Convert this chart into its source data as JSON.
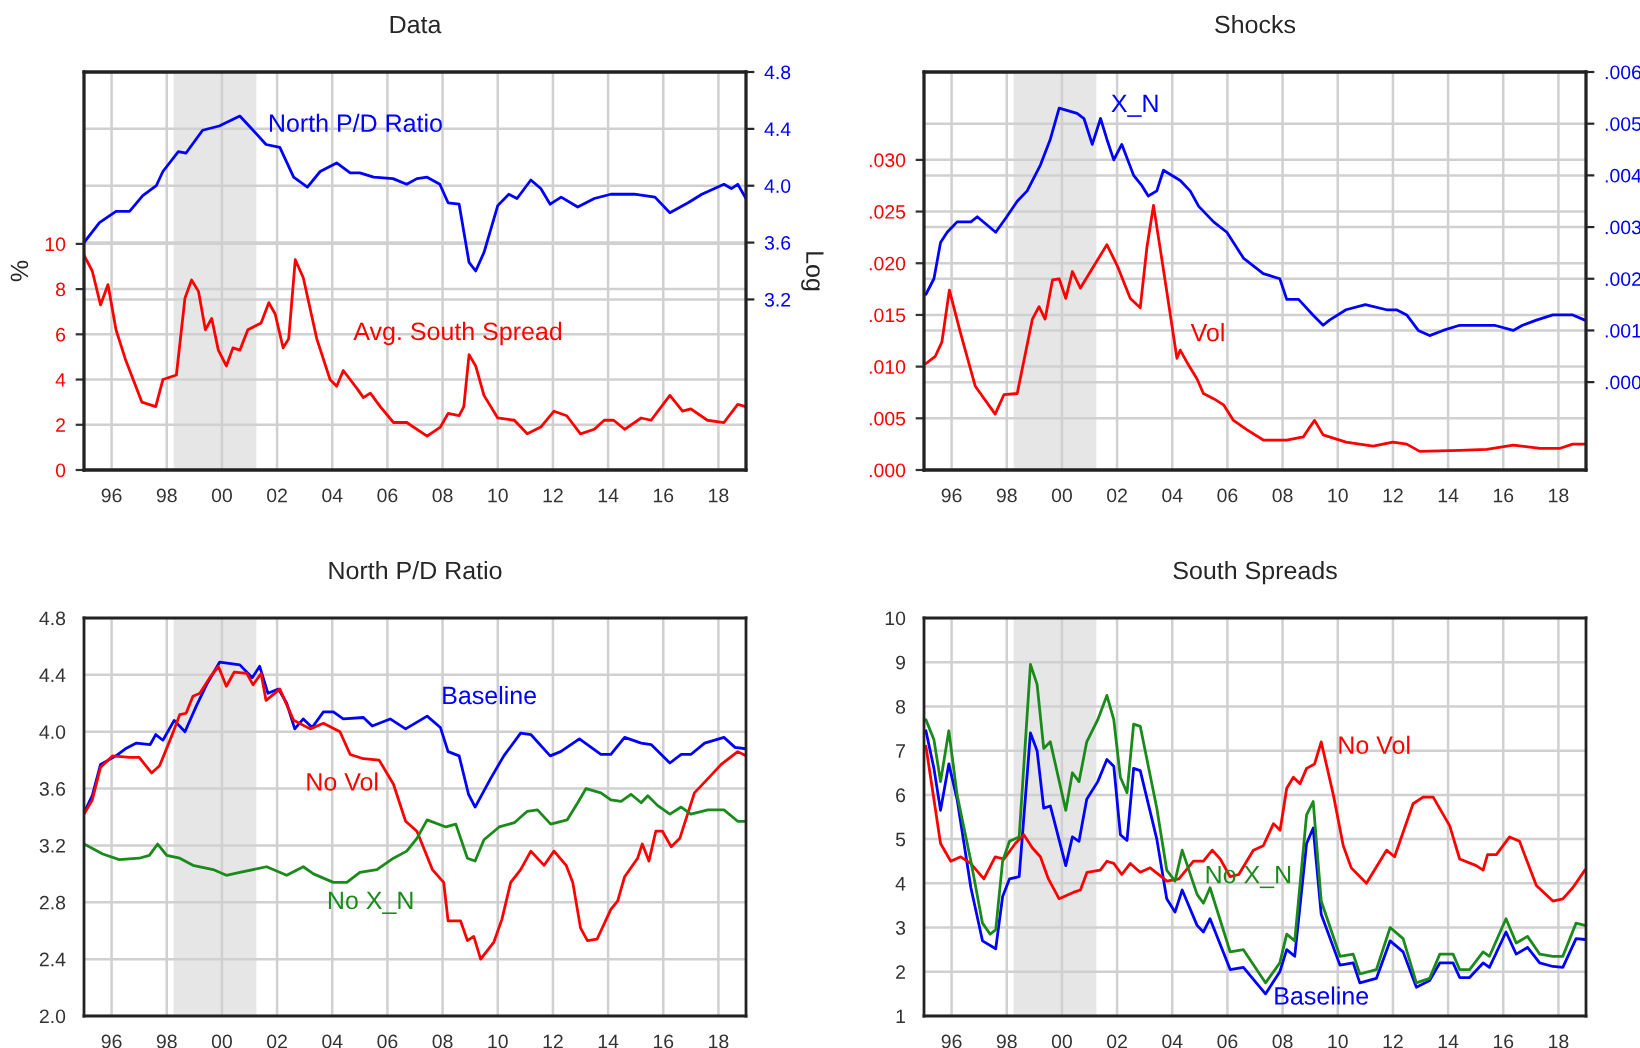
{
  "chart_data": [
    {
      "type": "line",
      "title": "Data",
      "ylabel": "%",
      "y2label": "Log",
      "xlim": [
        1995,
        2019
      ],
      "ylim": [
        0,
        17.6
      ],
      "yticks": [
        0,
        2,
        4,
        6,
        8,
        10
      ],
      "y2lim": [
        2.0,
        4.8
      ],
      "y2ticks": [
        3.2,
        3.6,
        {
          "value": 4.0,
          "label": "4.0"
        },
        4.4,
        4.8
      ],
      "xticks": [
        {
          "value": 1996,
          "label": "96"
        },
        {
          "value": 1998,
          "label": "98"
        },
        {
          "value": 2000,
          "label": "00"
        },
        {
          "value": 2002,
          "label": "02"
        },
        {
          "value": 2004,
          "label": "04"
        },
        {
          "value": 2006,
          "label": "06"
        },
        {
          "value": 2008,
          "label": "08"
        },
        {
          "value": 2010,
          "label": "10"
        },
        {
          "value": 2012,
          "label": "12"
        },
        {
          "value": 2014,
          "label": "14"
        },
        {
          "value": 2016,
          "label": "16"
        },
        {
          "value": 2018,
          "label": "18"
        }
      ],
      "grid": true,
      "bands": [
        {
          "axis": "x",
          "from": 1998.25,
          "to": 2001.25,
          "color": "#e6e6e6"
        }
      ],
      "series": [
        {
          "name": "North P/D Ratio",
          "color": "#0000ff",
          "axis": "y2",
          "x": [
            1995.0,
            1995.56,
            1996.16,
            1996.65,
            1997.13,
            1997.62,
            1997.86,
            1998.42,
            1998.7,
            1999.3,
            1999.9,
            2000.65,
            2001.13,
            2001.6,
            2002.1,
            2002.6,
            2003.1,
            2003.56,
            2004.16,
            2004.65,
            2005.0,
            2005.5,
            2006.2,
            2006.7,
            2007.07,
            2007.44,
            2007.9,
            2008.2,
            2008.6,
            2008.96,
            2009.2,
            2009.5,
            2010.0,
            2010.4,
            2010.7,
            2011.2,
            2011.56,
            2011.9,
            2012.3,
            2012.9,
            2013.5,
            2014.1,
            2014.95,
            2015.7,
            2016.24,
            2016.9,
            2017.4,
            2018.2,
            2018.47,
            2018.7,
            2019.0
          ],
          "values": [
            3.6,
            3.74,
            3.82,
            3.82,
            3.93,
            4.0,
            4.1,
            4.24,
            4.23,
            4.39,
            4.42,
            4.49,
            4.39,
            4.29,
            4.27,
            4.06,
            3.99,
            4.1,
            4.16,
            4.09,
            4.09,
            4.06,
            4.05,
            4.01,
            4.05,
            4.06,
            4.01,
            3.88,
            3.87,
            3.46,
            3.4,
            3.53,
            3.86,
            3.94,
            3.91,
            4.04,
            3.98,
            3.87,
            3.92,
            3.85,
            3.91,
            3.94,
            3.94,
            3.92,
            3.81,
            3.88,
            3.94,
            4.01,
            3.98,
            4.01,
            3.91
          ]
        },
        {
          "name": "Avg. South Spread",
          "color": "#ff0000",
          "x": [
            1995.0,
            1995.3,
            1995.6,
            1995.87,
            1996.16,
            1996.5,
            1997.1,
            1997.6,
            1997.86,
            1998.35,
            1998.66,
            1998.9,
            1999.15,
            1999.4,
            1999.63,
            1999.87,
            2000.16,
            2000.4,
            2000.65,
            2000.94,
            2001.42,
            2001.7,
            2001.93,
            2002.22,
            2002.42,
            2002.66,
            2002.95,
            2003.44,
            2003.92,
            2004.16,
            2004.4,
            2004.9,
            2005.13,
            2005.38,
            2005.74,
            2006.22,
            2006.7,
            2007.44,
            2007.92,
            2008.2,
            2008.6,
            2008.77,
            2008.96,
            2009.2,
            2009.5,
            2010.0,
            2010.6,
            2011.07,
            2011.56,
            2012.04,
            2012.5,
            2013.0,
            2013.5,
            2013.86,
            2014.2,
            2014.6,
            2015.2,
            2015.56,
            2016.24,
            2016.7,
            2017.0,
            2017.6,
            2018.2,
            2018.7,
            2019.0
          ],
          "values": [
            9.5,
            8.8,
            7.3,
            8.2,
            6.2,
            4.9,
            3.0,
            2.8,
            4.0,
            4.2,
            7.6,
            8.4,
            7.9,
            6.2,
            6.7,
            5.3,
            4.6,
            5.4,
            5.3,
            6.2,
            6.5,
            7.4,
            6.9,
            5.4,
            5.8,
            9.3,
            8.5,
            5.8,
            4.0,
            3.7,
            4.4,
            3.6,
            3.2,
            3.4,
            2.8,
            2.1,
            2.1,
            1.5,
            1.9,
            2.5,
            2.4,
            2.8,
            5.1,
            4.6,
            3.3,
            2.3,
            2.2,
            1.6,
            1.9,
            2.6,
            2.4,
            1.6,
            1.8,
            2.2,
            2.2,
            1.8,
            2.3,
            2.2,
            3.3,
            2.6,
            2.7,
            2.2,
            2.1,
            2.9,
            2.8
          ]
        }
      ]
    },
    {
      "type": "line",
      "title": "Shocks",
      "xlim": [
        1995,
        2019
      ],
      "ylim": [
        0,
        0.0385
      ],
      "yticks": [
        {
          "value": 0,
          "label": ".000"
        },
        {
          "value": 0.005,
          "label": ".005"
        },
        {
          "value": 0.01,
          "label": ".010"
        },
        {
          "value": 0.015,
          "label": ".015"
        },
        {
          "value": 0.02,
          "label": ".020"
        },
        {
          "value": 0.025,
          "label": ".025"
        },
        {
          "value": 0.03,
          "label": ".030"
        }
      ],
      "y2lim": [
        -0.0017,
        0.006
      ],
      "y2ticks": [
        {
          "value": 0,
          "label": ".000"
        },
        {
          "value": 0.001,
          "label": ".001"
        },
        {
          "value": 0.002,
          "label": ".002"
        },
        {
          "value": 0.003,
          "label": ".003"
        },
        {
          "value": 0.004,
          "label": ".004"
        },
        {
          "value": 0.005,
          "label": ".005"
        },
        {
          "value": 0.006,
          "label": ".006"
        }
      ],
      "xticks": [
        {
          "value": 1996,
          "label": "96"
        },
        {
          "value": 1998,
          "label": "98"
        },
        {
          "value": 2000,
          "label": "00"
        },
        {
          "value": 2002,
          "label": "02"
        },
        {
          "value": 2004,
          "label": "04"
        },
        {
          "value": 2006,
          "label": "06"
        },
        {
          "value": 2008,
          "label": "08"
        },
        {
          "value": 2010,
          "label": "10"
        },
        {
          "value": 2012,
          "label": "12"
        },
        {
          "value": 2014,
          "label": "14"
        },
        {
          "value": 2016,
          "label": "16"
        },
        {
          "value": 2018,
          "label": "18"
        }
      ],
      "grid": true,
      "bands": [
        {
          "axis": "x",
          "from": 1998.25,
          "to": 2001.25,
          "color": "#e6e6e6"
        }
      ],
      "series": [
        {
          "name": "X_N",
          "color": "#0000ff",
          "axis": "y2",
          "x": [
            1995.07,
            1995.36,
            1995.6,
            1995.84,
            1996.2,
            1996.7,
            1996.93,
            1997.6,
            1998.0,
            1998.38,
            1998.74,
            1999.22,
            1999.58,
            1999.9,
            2000.55,
            2000.8,
            2001.1,
            2001.4,
            2001.63,
            2001.88,
            2002.17,
            2002.6,
            2002.9,
            2003.13,
            2003.44,
            2003.68,
            2004.29,
            2004.65,
            2004.96,
            2005.5,
            2005.98,
            2006.58,
            2007.3,
            2007.9,
            2008.15,
            2008.58,
            2009.1,
            2009.47,
            2009.7,
            2010.3,
            2011.0,
            2011.77,
            2012.13,
            2012.5,
            2012.92,
            2013.33,
            2013.82,
            2014.42,
            2015.15,
            2015.4,
            2015.68,
            2016.36,
            2016.7,
            2017.2,
            2017.8,
            2018.52,
            2018.96
          ],
          "values": [
            0.0017,
            0.002,
            0.0027,
            0.0029,
            0.0031,
            0.0031,
            0.0032,
            0.0029,
            0.0032,
            0.0035,
            0.0037,
            0.0042,
            0.0047,
            0.0053,
            0.0052,
            0.0051,
            0.0046,
            0.0051,
            0.0047,
            0.0043,
            0.0046,
            0.004,
            0.0038,
            0.0036,
            0.0037,
            0.0041,
            0.0039,
            0.0037,
            0.0034,
            0.0031,
            0.0029,
            0.0024,
            0.0021,
            0.002,
            0.0016,
            0.0016,
            0.0013,
            0.0011,
            0.0012,
            0.0014,
            0.0015,
            0.0014,
            0.0014,
            0.0013,
            0.001,
            0.0009,
            0.001,
            0.0011,
            0.0011,
            0.0011,
            0.0011,
            0.001,
            0.0011,
            0.0012,
            0.0013,
            0.0013,
            0.0012
          ]
        },
        {
          "name": "Vol",
          "color": "#ff0000",
          "x": [
            1995.07,
            1995.41,
            1995.65,
            1995.92,
            1996.33,
            1996.86,
            1997.58,
            1997.9,
            1998.38,
            1998.93,
            1999.17,
            1999.39,
            1999.66,
            1999.9,
            2000.14,
            2000.38,
            2000.67,
            2001.63,
            2002.0,
            2002.48,
            2002.84,
            2003.08,
            2003.32,
            2003.68,
            2004.17,
            2004.29,
            2004.58,
            2004.9,
            2005.13,
            2005.5,
            2005.86,
            2006.22,
            2006.7,
            2007.3,
            2008.15,
            2008.75,
            2009.0,
            2009.16,
            2009.47,
            2010.3,
            2011.28,
            2012.0,
            2012.5,
            2012.97,
            2014.42,
            2015.4,
            2016.36,
            2017.33,
            2018.06,
            2018.52,
            2018.96
          ],
          "values": [
            0.0103,
            0.011,
            0.0124,
            0.0174,
            0.0132,
            0.0081,
            0.0054,
            0.0073,
            0.0074,
            0.0146,
            0.0158,
            0.0146,
            0.0184,
            0.0185,
            0.0166,
            0.0192,
            0.0176,
            0.0218,
            0.0198,
            0.0166,
            0.0157,
            0.0215,
            0.0256,
            0.0194,
            0.0108,
            0.0116,
            0.0102,
            0.0088,
            0.0074,
            0.0069,
            0.0063,
            0.0048,
            0.0039,
            0.0029,
            0.0029,
            0.0032,
            0.0042,
            0.0048,
            0.0034,
            0.0027,
            0.0023,
            0.0027,
            0.0025,
            0.0018,
            0.0019,
            0.002,
            0.0024,
            0.0021,
            0.0021,
            0.0025,
            0.0025
          ]
        }
      ]
    },
    {
      "type": "line",
      "title": "North P/D Ratio",
      "xlim": [
        1995,
        2019
      ],
      "ylim": [
        2.0,
        4.8
      ],
      "yticks": [
        {
          "value": 2.0,
          "label": "2.0"
        },
        2.4,
        2.8,
        3.2,
        3.6,
        {
          "value": 4.0,
          "label": "4.0"
        },
        4.4,
        4.8
      ],
      "xticks": [
        {
          "value": 1996,
          "label": "96"
        },
        {
          "value": 1998,
          "label": "98"
        },
        {
          "value": 2000,
          "label": "00"
        },
        {
          "value": 2002,
          "label": "02"
        },
        {
          "value": 2004,
          "label": "04"
        },
        {
          "value": 2006,
          "label": "06"
        },
        {
          "value": 2008,
          "label": "08"
        },
        {
          "value": 2010,
          "label": "10"
        },
        {
          "value": 2012,
          "label": "12"
        },
        {
          "value": 2014,
          "label": "14"
        },
        {
          "value": 2016,
          "label": "16"
        },
        {
          "value": 2018,
          "label": "18"
        }
      ],
      "grid": true,
      "bands": [
        {
          "axis": "x",
          "from": 1998.25,
          "to": 2001.25,
          "color": "#e6e6e6"
        }
      ],
      "series": [
        {
          "name": "Baseline",
          "color": "#0000ff",
          "x": [
            1995.0,
            1995.3,
            1995.6,
            1996.16,
            1996.5,
            1996.9,
            1997.4,
            1997.6,
            1997.86,
            1998.27,
            1998.66,
            1999.07,
            1999.44,
            1999.92,
            2000.65,
            2001.1,
            2001.37,
            2001.67,
            2002.05,
            2002.35,
            2002.64,
            2002.95,
            2003.27,
            2003.68,
            2004.04,
            2004.4,
            2005.13,
            2005.45,
            2006.1,
            2006.66,
            2007.44,
            2007.92,
            2008.2,
            2008.6,
            2008.94,
            2009.18,
            2009.74,
            2010.22,
            2010.83,
            2011.2,
            2011.9,
            2012.28,
            2012.96,
            2013.74,
            2014.1,
            2014.6,
            2015.2,
            2015.56,
            2016.24,
            2016.65,
            2017.0,
            2017.5,
            2018.2,
            2018.6,
            2019.0
          ],
          "values": [
            3.43,
            3.55,
            3.77,
            3.83,
            3.88,
            3.92,
            3.91,
            3.98,
            3.94,
            4.08,
            4.0,
            4.18,
            4.33,
            4.49,
            4.47,
            4.38,
            4.46,
            4.27,
            4.3,
            4.2,
            4.02,
            4.09,
            4.03,
            4.14,
            4.14,
            4.09,
            4.1,
            4.04,
            4.09,
            4.02,
            4.11,
            4.03,
            3.86,
            3.83,
            3.56,
            3.47,
            3.67,
            3.83,
            3.99,
            3.98,
            3.83,
            3.86,
            3.95,
            3.84,
            3.84,
            3.96,
            3.92,
            3.91,
            3.78,
            3.84,
            3.84,
            3.92,
            3.96,
            3.89,
            3.88
          ]
        },
        {
          "name": "No Vol",
          "color": "#ff0000",
          "x": [
            1995.0,
            1995.3,
            1995.6,
            1996.04,
            1996.65,
            1997.0,
            1997.45,
            1997.74,
            1998.22,
            1998.47,
            1998.7,
            1998.95,
            1999.2,
            1999.56,
            1999.87,
            2000.16,
            2000.45,
            2000.9,
            2001.13,
            2001.42,
            2001.6,
            2002.1,
            2002.6,
            2003.2,
            2003.68,
            2004.28,
            2004.65,
            2005.13,
            2005.7,
            2006.22,
            2006.66,
            2007.07,
            2007.63,
            2008.04,
            2008.2,
            2008.65,
            2008.9,
            2009.13,
            2009.38,
            2009.86,
            2010.15,
            2010.47,
            2010.83,
            2011.2,
            2011.68,
            2012.04,
            2012.48,
            2012.72,
            2013.0,
            2013.25,
            2013.6,
            2014.1,
            2014.35,
            2014.6,
            2015.07,
            2015.24,
            2015.48,
            2015.73,
            2015.97,
            2016.29,
            2016.6,
            2017.13,
            2017.62,
            2018.1,
            2018.7,
            2019.0
          ],
          "values": [
            3.42,
            3.52,
            3.75,
            3.83,
            3.82,
            3.82,
            3.71,
            3.76,
            3.99,
            4.12,
            4.13,
            4.25,
            4.27,
            4.38,
            4.46,
            4.32,
            4.42,
            4.41,
            4.33,
            4.41,
            4.22,
            4.3,
            4.08,
            4.02,
            4.06,
            4.0,
            3.84,
            3.81,
            3.8,
            3.63,
            3.37,
            3.3,
            3.03,
            2.94,
            2.67,
            2.67,
            2.53,
            2.56,
            2.4,
            2.52,
            2.68,
            2.94,
            3.03,
            3.16,
            3.06,
            3.16,
            3.06,
            2.94,
            2.62,
            2.53,
            2.54,
            2.75,
            2.81,
            2.98,
            3.11,
            3.21,
            3.09,
            3.3,
            3.3,
            3.19,
            3.25,
            3.57,
            3.67,
            3.77,
            3.86,
            3.83
          ]
        },
        {
          "name": "No X_N",
          "color": "#1a8a1a",
          "x": [
            1995.0,
            1995.68,
            1996.28,
            1997.0,
            1997.37,
            1997.67,
            1998.0,
            1998.47,
            1998.95,
            1999.68,
            2000.16,
            2000.65,
            2001.62,
            2002.35,
            2002.95,
            2003.32,
            2004.04,
            2004.53,
            2005.0,
            2005.62,
            2006.22,
            2006.7,
            2007.07,
            2007.44,
            2008.12,
            2008.48,
            2008.9,
            2009.18,
            2009.5,
            2010.05,
            2010.6,
            2011.07,
            2011.44,
            2011.92,
            2012.52,
            2012.9,
            2013.2,
            2013.74,
            2014.1,
            2014.47,
            2014.83,
            2015.2,
            2015.44,
            2015.8,
            2016.24,
            2016.65,
            2017.0,
            2017.62,
            2018.2,
            2018.7,
            2019.0
          ],
          "values": [
            3.21,
            3.14,
            3.1,
            3.11,
            3.13,
            3.21,
            3.13,
            3.11,
            3.06,
            3.03,
            2.99,
            3.01,
            3.05,
            2.99,
            3.05,
            3.0,
            2.94,
            2.94,
            3.01,
            3.03,
            3.11,
            3.16,
            3.25,
            3.38,
            3.33,
            3.35,
            3.11,
            3.09,
            3.24,
            3.33,
            3.36,
            3.44,
            3.45,
            3.35,
            3.38,
            3.5,
            3.6,
            3.57,
            3.52,
            3.51,
            3.56,
            3.5,
            3.55,
            3.48,
            3.42,
            3.47,
            3.42,
            3.45,
            3.45,
            3.37,
            3.37
          ]
        }
      ]
    },
    {
      "type": "line",
      "title": "South Spreads",
      "xlim": [
        1995,
        2019
      ],
      "ylim": [
        1,
        10
      ],
      "yticks": [
        1,
        2,
        3,
        4,
        5,
        6,
        7,
        8,
        9,
        10
      ],
      "xticks": [
        {
          "value": 1996,
          "label": "96"
        },
        {
          "value": 1998,
          "label": "98"
        },
        {
          "value": 2000,
          "label": "00"
        },
        {
          "value": 2002,
          "label": "02"
        },
        {
          "value": 2004,
          "label": "04"
        },
        {
          "value": 2006,
          "label": "06"
        },
        {
          "value": 2008,
          "label": "08"
        },
        {
          "value": 2010,
          "label": "10"
        },
        {
          "value": 2012,
          "label": "12"
        },
        {
          "value": 2014,
          "label": "14"
        },
        {
          "value": 2016,
          "label": "16"
        },
        {
          "value": 2018,
          "label": "18"
        }
      ],
      "grid": true,
      "bands": [
        {
          "axis": "x",
          "from": 1998.25,
          "to": 2001.25,
          "color": "#e6e6e6"
        }
      ],
      "series": [
        {
          "name": "Baseline",
          "color": "#0000ff",
          "x": [
            1995.07,
            1995.36,
            1995.6,
            1995.9,
            1996.2,
            1996.7,
            1997.12,
            1997.6,
            1997.85,
            1998.1,
            1998.45,
            1998.86,
            1999.1,
            1999.34,
            1999.58,
            2000.14,
            2000.38,
            2000.62,
            2000.9,
            2001.3,
            2001.63,
            2001.88,
            2002.12,
            2002.36,
            2002.6,
            2002.84,
            2003.44,
            2003.8,
            2004.1,
            2004.36,
            2004.9,
            2005.13,
            2005.37,
            2006.1,
            2006.58,
            2007.38,
            2007.9,
            2008.15,
            2008.44,
            2008.87,
            2009.11,
            2009.4,
            2010.08,
            2010.56,
            2010.8,
            2011.4,
            2011.9,
            2012.37,
            2012.85,
            2013.33,
            2013.7,
            2014.18,
            2014.42,
            2014.78,
            2015.27,
            2015.5,
            2016.1,
            2016.47,
            2016.88,
            2017.32,
            2017.8,
            2018.16,
            2018.64,
            2018.96
          ],
          "values": [
            7.45,
            6.6,
            5.65,
            6.7,
            5.9,
            3.9,
            2.7,
            2.52,
            3.7,
            4.1,
            4.15,
            7.4,
            7.0,
            5.7,
            5.75,
            4.4,
            5.05,
            4.95,
            5.9,
            6.3,
            6.8,
            6.65,
            5.1,
            4.97,
            6.6,
            6.55,
            5.0,
            3.65,
            3.35,
            3.85,
            3.05,
            2.9,
            3.2,
            2.05,
            2.1,
            1.5,
            2.0,
            2.5,
            2.35,
            4.9,
            5.25,
            3.3,
            2.15,
            2.2,
            1.75,
            1.85,
            2.7,
            2.45,
            1.65,
            1.8,
            2.2,
            2.2,
            1.87,
            1.87,
            2.2,
            2.1,
            2.9,
            2.4,
            2.55,
            2.2,
            2.12,
            2.1,
            2.75,
            2.73
          ]
        },
        {
          "name": "No Vol",
          "color": "#ff0000",
          "x": [
            1995.07,
            1995.6,
            1995.97,
            1996.33,
            1996.69,
            1997.17,
            1997.58,
            1997.9,
            1998.31,
            1998.62,
            1998.93,
            1999.22,
            1999.51,
            1999.9,
            2000.43,
            2000.67,
            2000.91,
            2001.39,
            2001.63,
            2001.88,
            2002.17,
            2002.48,
            2002.84,
            2003.2,
            2003.81,
            2004.24,
            2004.77,
            2005.13,
            2005.45,
            2005.74,
            2006.1,
            2006.41,
            2006.94,
            2007.3,
            2007.67,
            2007.91,
            2008.15,
            2008.39,
            2008.63,
            2008.87,
            2009.16,
            2009.4,
            2009.84,
            2010.2,
            2010.49,
            2011.04,
            2011.77,
            2012.06,
            2012.73,
            2013.09,
            2013.46,
            2014.06,
            2014.42,
            2015.02,
            2015.27,
            2015.43,
            2015.75,
            2016.23,
            2016.59,
            2017.2,
            2017.8,
            2018.16,
            2018.52,
            2018.96
          ],
          "values": [
            7.1,
            4.9,
            4.5,
            4.6,
            4.45,
            4.1,
            4.6,
            4.55,
            4.9,
            5.1,
            4.8,
            4.6,
            4.1,
            3.65,
            3.8,
            3.85,
            4.25,
            4.3,
            4.5,
            4.45,
            4.2,
            4.45,
            4.25,
            4.35,
            4.05,
            4.1,
            4.5,
            4.5,
            4.75,
            4.55,
            4.15,
            4.2,
            4.75,
            4.85,
            5.35,
            5.2,
            6.15,
            6.4,
            6.25,
            6.6,
            6.7,
            7.2,
            6.0,
            4.85,
            4.35,
            4.0,
            4.75,
            4.6,
            5.8,
            5.95,
            5.95,
            5.3,
            4.55,
            4.4,
            4.3,
            4.65,
            4.65,
            5.05,
            4.95,
            3.95,
            3.6,
            3.65,
            3.9,
            4.3
          ]
        },
        {
          "name": "No X_N",
          "color": "#1a8a1a",
          "x": [
            1995.07,
            1995.36,
            1995.6,
            1995.9,
            1996.2,
            1996.7,
            1997.12,
            1997.4,
            1997.6,
            1997.85,
            1998.1,
            1998.45,
            1998.86,
            1999.1,
            1999.34,
            1999.58,
            2000.14,
            2000.38,
            2000.62,
            2000.9,
            2001.3,
            2001.63,
            2001.88,
            2002.12,
            2002.36,
            2002.6,
            2002.84,
            2003.44,
            2003.8,
            2004.1,
            2004.36,
            2004.9,
            2005.13,
            2005.37,
            2006.1,
            2006.58,
            2007.38,
            2007.9,
            2008.15,
            2008.44,
            2008.87,
            2009.11,
            2009.4,
            2010.08,
            2010.56,
            2010.8,
            2011.4,
            2011.9,
            2012.37,
            2012.85,
            2013.33,
            2013.7,
            2014.18,
            2014.42,
            2014.78,
            2015.27,
            2015.5,
            2016.1,
            2016.47,
            2016.88,
            2017.32,
            2017.8,
            2018.16,
            2018.64,
            2018.96
          ],
          "values": [
            7.7,
            7.25,
            6.3,
            7.45,
            6.0,
            4.5,
            3.1,
            2.85,
            2.95,
            4.5,
            4.95,
            5.05,
            8.95,
            8.5,
            7.05,
            7.2,
            5.65,
            6.5,
            6.3,
            7.2,
            7.7,
            8.25,
            7.7,
            6.4,
            6.05,
            7.6,
            7.55,
            5.7,
            4.3,
            4.05,
            4.75,
            3.75,
            3.55,
            3.9,
            2.45,
            2.5,
            1.75,
            2.2,
            2.85,
            2.7,
            5.55,
            5.85,
            3.6,
            2.35,
            2.4,
            1.95,
            2.05,
            3.0,
            2.75,
            1.75,
            1.85,
            2.4,
            2.4,
            2.05,
            2.05,
            2.45,
            2.35,
            3.2,
            2.65,
            2.8,
            2.4,
            2.35,
            2.35,
            3.1,
            3.05
          ]
        }
      ]
    }
  ]
}
